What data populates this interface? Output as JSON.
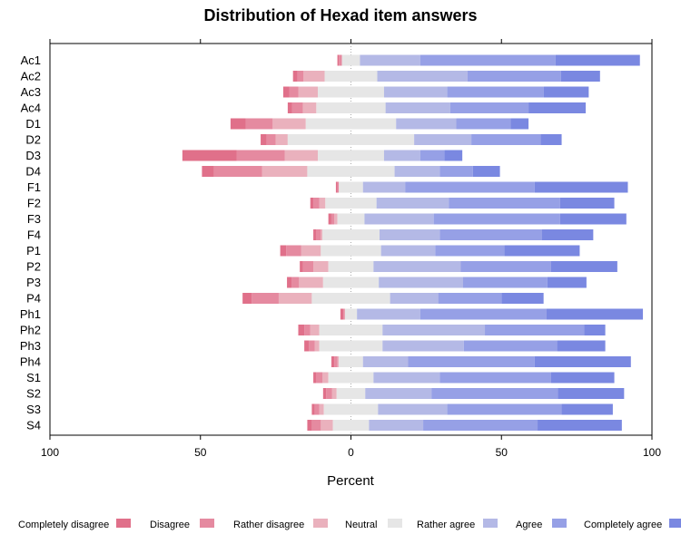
{
  "chart_data": {
    "type": "bar",
    "orientation": "horizontal",
    "stacking": "diverging",
    "title": "Distribution of Hexad item answers",
    "xlabel": "Percent",
    "ylabel": "",
    "xlim": [
      -100,
      100
    ],
    "x_ticks": [
      -100,
      -50,
      0,
      50,
      100
    ],
    "x_tick_labels": [
      "100",
      "50",
      "0",
      "50",
      "100"
    ],
    "legend_position": "bottom",
    "categories": [
      "Ac1",
      "Ac2",
      "Ac3",
      "Ac4",
      "D1",
      "D2",
      "D3",
      "D4",
      "F1",
      "F2",
      "F3",
      "F4",
      "P1",
      "P2",
      "P3",
      "P4",
      "Ph1",
      "Ph2",
      "Ph3",
      "Ph4",
      "S1",
      "S2",
      "S3",
      "S4"
    ],
    "series": [
      {
        "name": "Completely disagree",
        "color": "#e0708a",
        "values": [
          0.5,
          1.5,
          2,
          1.5,
          5,
          2,
          18,
          4,
          0.5,
          1,
          1,
          1,
          2,
          1,
          1.5,
          3,
          1,
          2,
          1.5,
          1,
          1,
          1,
          1,
          1.5
        ]
      },
      {
        "name": "Disagree",
        "color": "#e58aa0",
        "values": [
          1,
          2,
          3,
          3.5,
          9,
          3,
          16,
          16,
          0.5,
          2,
          1,
          1.5,
          5,
          3.5,
          2.5,
          9,
          0.5,
          2,
          2,
          1,
          2,
          2,
          1.5,
          3
        ]
      },
      {
        "name": "Rather disagree",
        "color": "#eab1bd",
        "values": [
          0,
          7,
          6.5,
          4.5,
          11,
          4,
          11,
          15,
          0,
          2,
          1,
          0.5,
          6.5,
          5,
          8,
          11,
          0,
          3,
          1.5,
          0.5,
          2,
          1.5,
          1.5,
          4
        ]
      },
      {
        "name": "Neutral",
        "color": "#e6e6e6",
        "values": [
          6,
          17.5,
          22,
          23,
          30,
          42,
          22,
          29,
          8,
          17,
          9,
          19,
          20,
          15,
          18.5,
          26,
          4,
          21,
          21,
          8,
          15,
          9.5,
          18,
          12
        ]
      },
      {
        "name": "Rather agree",
        "color": "#b4b9e6",
        "values": [
          20,
          30,
          21,
          21.5,
          20,
          19,
          12,
          15,
          14,
          24,
          23,
          20,
          18,
          29,
          28,
          16,
          21,
          34,
          27,
          15,
          22,
          22,
          23,
          18
        ]
      },
      {
        "name": "Agree",
        "color": "#96a0e6",
        "values": [
          45,
          31,
          32,
          26,
          18,
          23,
          8,
          11,
          43,
          37,
          42,
          34,
          23,
          30,
          28,
          21,
          42,
          33,
          31,
          42,
          37,
          42,
          38,
          38
        ]
      },
      {
        "name": "Completely agree",
        "color": "#7a88e1",
        "values": [
          28,
          13,
          15,
          19,
          6,
          7,
          6,
          9,
          31,
          18,
          22,
          17,
          25,
          22,
          13,
          14,
          32,
          7,
          16,
          32,
          21,
          22,
          17,
          28
        ]
      }
    ]
  }
}
